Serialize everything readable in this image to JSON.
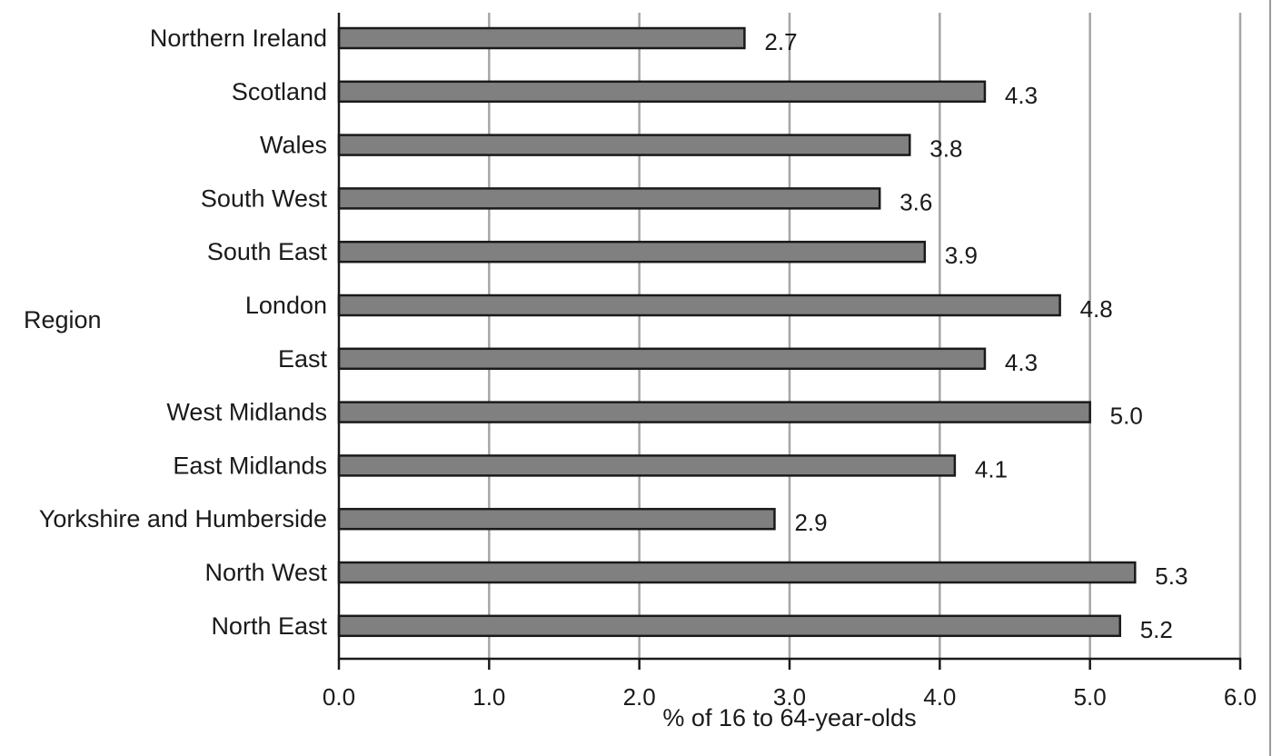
{
  "chart_data": {
    "type": "bar",
    "orientation": "horizontal",
    "title": "",
    "xlabel": "% of 16 to 64-year-olds",
    "ylabel": "Region",
    "categories": [
      "Northern Ireland",
      "Scotland",
      "Wales",
      "South West",
      "South East",
      "London",
      "East",
      "West Midlands",
      "East Midlands",
      "Yorkshire and Humberside",
      "North West",
      "North East"
    ],
    "values": [
      2.7,
      4.3,
      3.8,
      3.6,
      3.9,
      4.8,
      4.3,
      5.0,
      4.1,
      2.9,
      5.3,
      5.2
    ],
    "value_labels": [
      "2.7",
      "4.3",
      "3.8",
      "3.6",
      "3.9",
      "4.8",
      "4.3",
      "5.0",
      "4.1",
      "2.9",
      "5.3",
      "5.2"
    ],
    "xlim": [
      0,
      6
    ],
    "xticks": [
      "0.0",
      "1.0",
      "2.0",
      "3.0",
      "4.0",
      "5.0",
      "6.0"
    ],
    "grid": "vertical",
    "legend": "none",
    "colors": {
      "bar_fill": "#808080",
      "bar_stroke": "#1a1a1a",
      "grid": "#a6a6a6",
      "axis": "#1a1a1a"
    }
  }
}
